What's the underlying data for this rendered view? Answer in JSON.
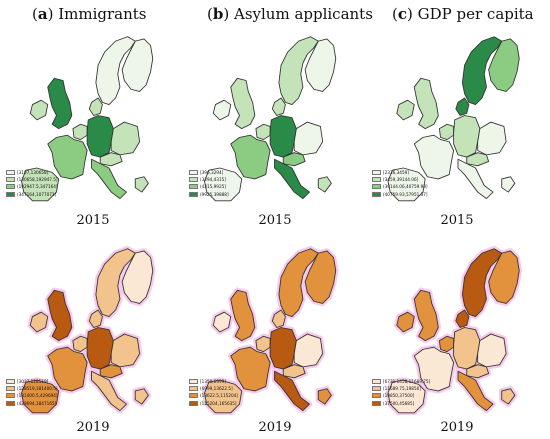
{
  "columns": [
    {
      "letter": "a",
      "title": "Immigrants"
    },
    {
      "letter": "b",
      "title": "Asylum applicants"
    },
    {
      "letter": "c",
      "title": "GDP per capita"
    }
  ],
  "years": [
    "2015",
    "2019"
  ],
  "colors": {
    "green": [
      "#eef6ea",
      "#c4e3b8",
      "#8ccb82",
      "#2a8a48"
    ],
    "orange": [
      "#fbe8d4",
      "#f2c38c",
      "#e2913c",
      "#b85a12"
    ],
    "halo": "#f7c9ec",
    "outline": "#333333"
  },
  "legends": {
    "a2015": [
      "[3107,130658]",
      "(130658,192947.5]",
      "(192947.5,347164]",
      "(347164,1077073]"
    ],
    "b2015": [
      "[396,3294]",
      "(3294,4315]",
      "(4315,9925]",
      "(9925,39888]"
    ],
    "c2015": [
      "[2336,3459]",
      "(3459,39144.06]",
      "(39144.06,40759.93]",
      "(40759.93,57951.37]"
    ],
    "a2019": [
      "[3037,128519]",
      "(128519,181400.5]",
      "(181400.5,429694]",
      "(429694,1847165]"
    ],
    "b2019": [
      "[1350,6999]",
      "(6999,13622.5]",
      "(13622.5,115204]",
      "(115204,165635]"
    ],
    "c2019": [
      "[6731.1458,11689.75]",
      "(11689.75,19850]",
      "(19850,37500]",
      "(37500,45685]"
    ]
  },
  "fills": {
    "a2015": {
      "nordic": 0,
      "finland": 0,
      "uk": 3,
      "ireland": 1,
      "france": 2,
      "benelux": 1,
      "germany": 3,
      "austria": 1,
      "italy": 2,
      "iberia": 1,
      "east": 1,
      "greece": 1,
      "denmark": 1
    },
    "b2015": {
      "nordic": 1,
      "finland": 0,
      "uk": 1,
      "ireland": 0,
      "france": 2,
      "benelux": 1,
      "germany": 3,
      "austria": 2,
      "italy": 3,
      "iberia": 0,
      "east": 0,
      "greece": 1,
      "denmark": 1
    },
    "c2015": {
      "nordic": 3,
      "finland": 2,
      "uk": 1,
      "ireland": 1,
      "france": 0,
      "benelux": 1,
      "germany": 1,
      "austria": 1,
      "italy": 0,
      "iberia": 0,
      "east": 0,
      "greece": 0,
      "denmark": 3
    },
    "a2019": {
      "nordic": 1,
      "finland": 0,
      "uk": 3,
      "ireland": 1,
      "france": 2,
      "benelux": 1,
      "germany": 3,
      "austria": 2,
      "italy": 1,
      "iberia": 2,
      "east": 1,
      "greece": 1,
      "denmark": 1
    },
    "b2019": {
      "nordic": 2,
      "finland": 2,
      "uk": 2,
      "ireland": 0,
      "france": 2,
      "benelux": 1,
      "germany": 3,
      "austria": 1,
      "italy": 3,
      "iberia": 1,
      "east": 0,
      "greece": 2,
      "denmark": 1
    },
    "c2019": {
      "nordic": 3,
      "finland": 2,
      "uk": 2,
      "ireland": 2,
      "france": 0,
      "benelux": 2,
      "germany": 1,
      "austria": 1,
      "italy": 2,
      "iberia": 0,
      "east": 0,
      "greece": 1,
      "denmark": 3
    }
  }
}
